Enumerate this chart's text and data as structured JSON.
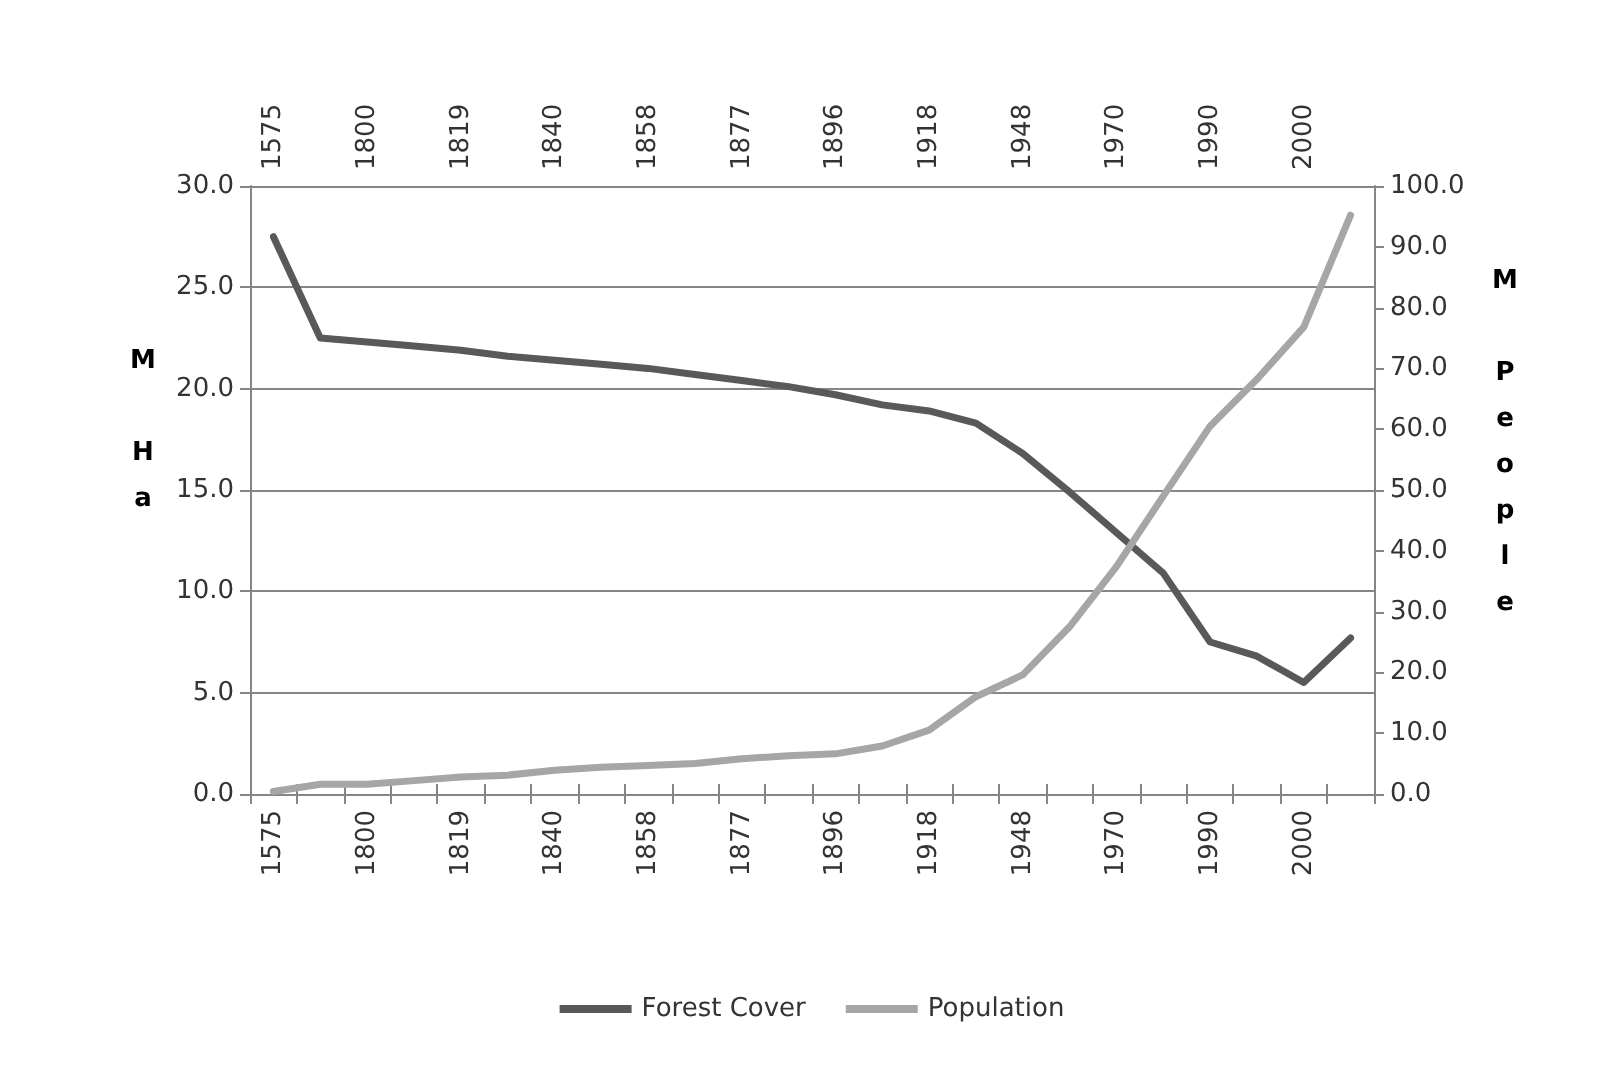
{
  "chart_data": {
    "type": "line",
    "ylabel": "M Ha",
    "y2label": "M People",
    "categories": [
      "1575",
      null,
      "1800",
      null,
      "1819",
      null,
      "1840",
      null,
      "1858",
      null,
      "1877",
      null,
      "1896",
      null,
      "1918",
      null,
      "1948",
      null,
      "1970",
      null,
      "1990",
      null,
      "2000",
      null
    ],
    "series": [
      {
        "name": "Forest Cover",
        "color": "#595959",
        "values": [
          27.5,
          22.5,
          22.3,
          22.1,
          21.9,
          21.6,
          21.4,
          21.2,
          21.0,
          20.7,
          20.4,
          20.1,
          19.7,
          19.2,
          18.9,
          18.3,
          16.8,
          14.9,
          12.9,
          10.9,
          7.5,
          6.8,
          5.5,
          7.7
        ]
      },
      {
        "name": "Population",
        "color": "#a6a6a6",
        "axis": "y2",
        "values": [
          0.4,
          1.6,
          1.6,
          2.2,
          2.8,
          3.1,
          3.9,
          4.4,
          4.7,
          5.0,
          5.8,
          6.3,
          6.6,
          7.9,
          10.5,
          16.0,
          19.6,
          27.5,
          37.4,
          49.0,
          60.5,
          68.2,
          76.8,
          95.2
        ]
      }
    ],
    "ylim": [
      0,
      30
    ],
    "yticks": [
      {
        "value": 0,
        "label": "0.0"
      },
      {
        "value": 5,
        "label": "5.0"
      },
      {
        "value": 10,
        "label": "10.0"
      },
      {
        "value": 15,
        "label": "15.0"
      },
      {
        "value": 20,
        "label": "20.0"
      },
      {
        "value": 25,
        "label": "25.0"
      },
      {
        "value": 30,
        "label": "30.0"
      }
    ],
    "y2lim": [
      0,
      100
    ],
    "y2ticks": [
      {
        "value": 0,
        "label": "0.0"
      },
      {
        "value": 10,
        "label": "10.0"
      },
      {
        "value": 20,
        "label": "20.0"
      },
      {
        "value": 30,
        "label": "30.0"
      },
      {
        "value": 40,
        "label": "40.0"
      },
      {
        "value": 50,
        "label": "50.0"
      },
      {
        "value": 60,
        "label": "60.0"
      },
      {
        "value": 70,
        "label": "70.0"
      },
      {
        "value": 80,
        "label": "80.0"
      },
      {
        "value": 90,
        "label": "90.0"
      },
      {
        "value": 100,
        "label": "100.0"
      }
    ],
    "grid": "y",
    "legend": "bottom",
    "marker": "none",
    "line_style": "solid"
  }
}
